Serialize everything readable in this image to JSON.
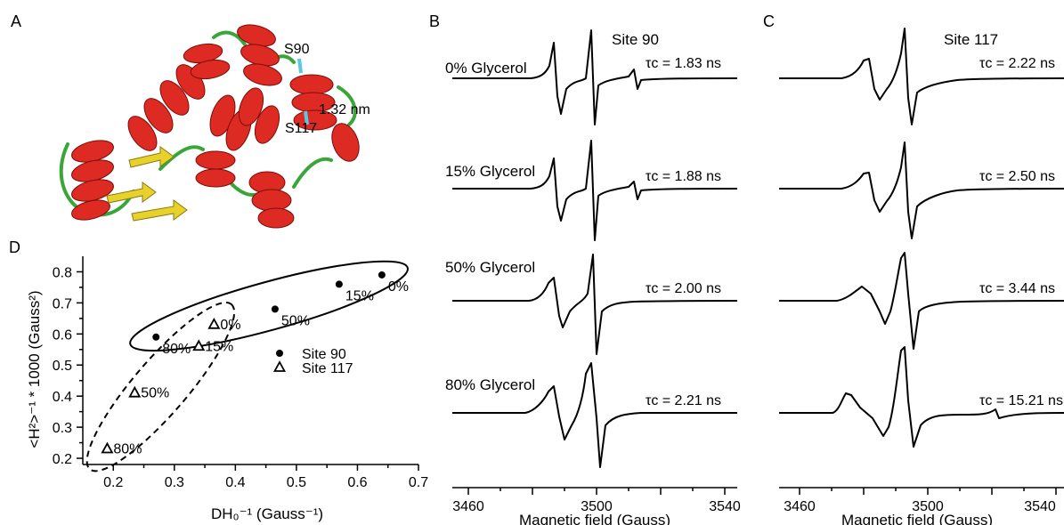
{
  "panels": {
    "A": {
      "letter": "A",
      "labels": {
        "s90": "S90",
        "s117": "S117",
        "distance": "1.32 nm"
      }
    },
    "B": {
      "letter": "B",
      "site": "Site 90",
      "xlabel": "Magnetic field (Gauss)",
      "xticks": [
        "3460",
        "3500",
        "3540"
      ],
      "rows": [
        {
          "glycerol": "0% Glycerol",
          "tau": "τc = 1.83 ns"
        },
        {
          "glycerol": "15% Glycerol",
          "tau": "τc = 1.88 ns"
        },
        {
          "glycerol": "50% Glycerol",
          "tau": "τc = 2.00 ns"
        },
        {
          "glycerol": "80% Glycerol",
          "tau": "τc = 2.21 ns"
        }
      ]
    },
    "C": {
      "letter": "C",
      "site": "Site 117",
      "xlabel": "Magnetic field (Gauss)",
      "xticks": [
        "3460",
        "3500",
        "3540"
      ],
      "rows": [
        {
          "tau": "τc = 2.22 ns"
        },
        {
          "tau": "τc = 2.50 ns"
        },
        {
          "tau": "τc = 3.44 ns"
        },
        {
          "tau": "τc = 15.21 ns"
        }
      ]
    },
    "D": {
      "letter": "D",
      "xlabel": "DH₀⁻¹ (Gauss⁻¹)",
      "ylabel": "<H²>⁻¹ * 1000 (Gauss²)"
    }
  },
  "chart_data": {
    "type": "scatter",
    "xlim": [
      0.15,
      0.7
    ],
    "ylim": [
      0.18,
      0.85
    ],
    "xticks": [
      "0.2",
      "0.3",
      "0.4",
      "0.5",
      "0.6",
      "0.7"
    ],
    "yticks": [
      "0.2",
      "0.3",
      "0.4",
      "0.5",
      "0.6",
      "0.7",
      "0.8"
    ],
    "legend_position": "right",
    "series": [
      {
        "name": "Site 90",
        "marker": "filled-circle",
        "x": [
          0.27,
          0.465,
          0.57,
          0.64
        ],
        "y": [
          0.59,
          0.68,
          0.76,
          0.79
        ],
        "point_labels": [
          "80%",
          "50%",
          "15%",
          "0%"
        ]
      },
      {
        "name": "Site 117",
        "marker": "open-triangle",
        "x": [
          0.19,
          0.235,
          0.34,
          0.365
        ],
        "y": [
          0.23,
          0.41,
          0.56,
          0.63
        ],
        "point_labels": [
          "80%",
          "50%",
          "15%",
          "0%"
        ]
      }
    ]
  }
}
